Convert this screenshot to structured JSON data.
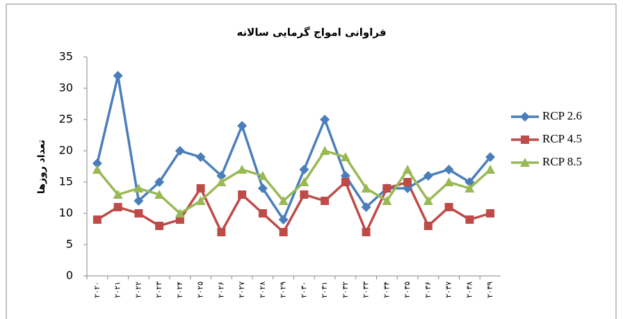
{
  "chart_data": {
    "type": "line",
    "title": "فراوانی امواج گرمایی سالانه",
    "y_label": "تعداد روزها",
    "categories": [
      "۲۰۲۰",
      "۲۰۲۱",
      "۲۰۲۲",
      "۲۰۲۳",
      "۲۰۲۴",
      "۲۰۲۵",
      "۲۰۲۶",
      "۲۰۲۷",
      "۲۰۲۸",
      "۲۰۲۹",
      "۲۰۳۰",
      "۲۰۳۱",
      "۲۰۳۲",
      "۲۰۳۳",
      "۲۰۳۴",
      "۲۰۳۵",
      "۲۰۳۶",
      "۲۰۳۷",
      "۲۰۳۸",
      "۲۰۳۹"
    ],
    "series": [
      {
        "name": "RCP 2.6",
        "color": "#4a7ebb",
        "marker": "diamond",
        "values": [
          18,
          32,
          12,
          15,
          20,
          19,
          16,
          24,
          14,
          9,
          17,
          25,
          16,
          11,
          14,
          14,
          16,
          17,
          15,
          19
        ]
      },
      {
        "name": "RCP 4.5",
        "color": "#be4b48",
        "marker": "square",
        "values": [
          9,
          11,
          10,
          8,
          9,
          14,
          7,
          13,
          10,
          7,
          13,
          12,
          15,
          7,
          14,
          15,
          8,
          11,
          9,
          10
        ]
      },
      {
        "name": "RCP 8.5",
        "color": "#98b954",
        "marker": "triangle",
        "values": [
          17,
          13,
          14,
          13,
          10,
          12,
          15,
          17,
          16,
          12,
          15,
          20,
          19,
          14,
          12,
          17,
          12,
          15,
          14,
          17
        ]
      }
    ],
    "ylim": [
      0,
      35
    ],
    "yticks": [
      0,
      5,
      10,
      15,
      20,
      25,
      30,
      35
    ],
    "grid": false
  }
}
